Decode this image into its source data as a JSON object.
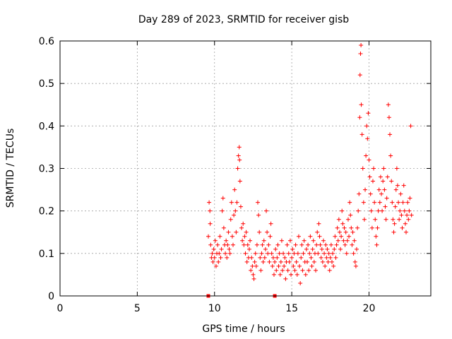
{
  "chart_data": {
    "type": "scatter",
    "title": "Day 289 of 2023, SRMTID for receiver gisb",
    "xlabel": "GPS time / hours",
    "ylabel": "SRMTID / TECUs",
    "xlim": [
      0,
      24
    ],
    "ylim": [
      0,
      0.6
    ],
    "xticks": [
      0,
      5,
      10,
      15,
      20
    ],
    "yticks": [
      0,
      0.1,
      0.2,
      0.3,
      0.4,
      0.5,
      0.6
    ],
    "xtick_labels": [
      "0",
      "5",
      "10",
      "15",
      "20"
    ],
    "ytick_labels": [
      "0",
      "0.1",
      "0.2",
      "0.3",
      "0.4",
      "0.5",
      "0.6"
    ],
    "grid": true,
    "marker": "+",
    "color": "#ff0000",
    "series": [
      {
        "name": "SRMTID",
        "points": [
          [
            9.6,
            0.14
          ],
          [
            9.65,
            0.22
          ],
          [
            9.7,
            0.2
          ],
          [
            9.72,
            0.17
          ],
          [
            9.75,
            0.12
          ],
          [
            9.8,
            0.09
          ],
          [
            9.85,
            0.1
          ],
          [
            9.9,
            0.08
          ],
          [
            9.95,
            0.11
          ],
          [
            10.0,
            0.09
          ],
          [
            10.05,
            0.13
          ],
          [
            10.1,
            0.07
          ],
          [
            10.15,
            0.1
          ],
          [
            10.2,
            0.12
          ],
          [
            10.25,
            0.08
          ],
          [
            10.3,
            0.1
          ],
          [
            10.35,
            0.14
          ],
          [
            10.4,
            0.09
          ],
          [
            10.45,
            0.11
          ],
          [
            10.5,
            0.2
          ],
          [
            10.55,
            0.23
          ],
          [
            10.6,
            0.16
          ],
          [
            10.65,
            0.12
          ],
          [
            10.7,
            0.1
          ],
          [
            10.75,
            0.13
          ],
          [
            10.8,
            0.09
          ],
          [
            10.85,
            0.12
          ],
          [
            10.9,
            0.15
          ],
          [
            10.95,
            0.11
          ],
          [
            11.0,
            0.1
          ],
          [
            11.05,
            0.18
          ],
          [
            11.1,
            0.22
          ],
          [
            11.15,
            0.14
          ],
          [
            11.2,
            0.12
          ],
          [
            11.25,
            0.19
          ],
          [
            11.3,
            0.25
          ],
          [
            11.35,
            0.2
          ],
          [
            11.4,
            0.15
          ],
          [
            11.45,
            0.22
          ],
          [
            11.5,
            0.3
          ],
          [
            11.55,
            0.33
          ],
          [
            11.6,
            0.35
          ],
          [
            11.62,
            0.32
          ],
          [
            11.65,
            0.27
          ],
          [
            11.7,
            0.21
          ],
          [
            11.75,
            0.16
          ],
          [
            11.8,
            0.13
          ],
          [
            11.85,
            0.17
          ],
          [
            11.9,
            0.12
          ],
          [
            11.95,
            0.14
          ],
          [
            12.0,
            0.1
          ],
          [
            12.05,
            0.15
          ],
          [
            12.1,
            0.08
          ],
          [
            12.15,
            0.12
          ],
          [
            12.2,
            0.09
          ],
          [
            12.25,
            0.11
          ],
          [
            12.3,
            0.13
          ],
          [
            12.35,
            0.06
          ],
          [
            12.4,
            0.09
          ],
          [
            12.45,
            0.07
          ],
          [
            12.5,
            0.05
          ],
          [
            12.55,
            0.04
          ],
          [
            12.6,
            0.08
          ],
          [
            12.65,
            0.1
          ],
          [
            12.7,
            0.07
          ],
          [
            12.75,
            0.12
          ],
          [
            12.8,
            0.22
          ],
          [
            12.85,
            0.19
          ],
          [
            12.9,
            0.15
          ],
          [
            12.95,
            0.09
          ],
          [
            13.0,
            0.06
          ],
          [
            13.05,
            0.1
          ],
          [
            13.1,
            0.12
          ],
          [
            13.15,
            0.08
          ],
          [
            13.2,
            0.13
          ],
          [
            13.25,
            0.09
          ],
          [
            13.3,
            0.11
          ],
          [
            13.35,
            0.2
          ],
          [
            13.4,
            0.15
          ],
          [
            13.45,
            0.1
          ],
          [
            13.5,
            0.12
          ],
          [
            13.55,
            0.08
          ],
          [
            13.6,
            0.14
          ],
          [
            13.65,
            0.17
          ],
          [
            13.7,
            0.1
          ],
          [
            13.75,
            0.07
          ],
          [
            13.8,
            0.09
          ],
          [
            13.85,
            0.05
          ],
          [
            13.9,
            0.08
          ],
          [
            13.95,
            0.11
          ],
          [
            14.0,
            0.06
          ],
          [
            14.05,
            0.09
          ],
          [
            14.1,
            0.12
          ],
          [
            14.15,
            0.07
          ],
          [
            14.2,
            0.1
          ],
          [
            14.25,
            0.05
          ],
          [
            14.3,
            0.08
          ],
          [
            14.35,
            0.13
          ],
          [
            14.4,
            0.06
          ],
          [
            14.45,
            0.1
          ],
          [
            14.5,
            0.07
          ],
          [
            14.55,
            0.09
          ],
          [
            14.6,
            0.04
          ],
          [
            14.65,
            0.08
          ],
          [
            14.7,
            0.12
          ],
          [
            14.75,
            0.06
          ],
          [
            14.8,
            0.1
          ],
          [
            14.85,
            0.08
          ],
          [
            14.9,
            0.13
          ],
          [
            14.95,
            0.05
          ],
          [
            15.0,
            0.09
          ],
          [
            15.05,
            0.11
          ],
          [
            15.1,
            0.07
          ],
          [
            15.15,
            0.1
          ],
          [
            15.2,
            0.06
          ],
          [
            15.25,
            0.12
          ],
          [
            15.3,
            0.08
          ],
          [
            15.35,
            0.05
          ],
          [
            15.4,
            0.1
          ],
          [
            15.45,
            0.14
          ],
          [
            15.5,
            0.07
          ],
          [
            15.55,
            0.03
          ],
          [
            15.6,
            0.09
          ],
          [
            15.65,
            0.12
          ],
          [
            15.7,
            0.06
          ],
          [
            15.75,
            0.1
          ],
          [
            15.8,
            0.13
          ],
          [
            15.85,
            0.08
          ],
          [
            15.9,
            0.05
          ],
          [
            15.95,
            0.11
          ],
          [
            16.0,
            0.08
          ],
          [
            16.05,
            0.12
          ],
          [
            16.1,
            0.06
          ],
          [
            16.15,
            0.1
          ],
          [
            16.2,
            0.14
          ],
          [
            16.25,
            0.09
          ],
          [
            16.3,
            0.07
          ],
          [
            16.35,
            0.11
          ],
          [
            16.4,
            0.13
          ],
          [
            16.45,
            0.08
          ],
          [
            16.5,
            0.1
          ],
          [
            16.55,
            0.06
          ],
          [
            16.6,
            0.12
          ],
          [
            16.65,
            0.15
          ],
          [
            16.7,
            0.1
          ],
          [
            16.75,
            0.17
          ],
          [
            16.8,
            0.14
          ],
          [
            16.85,
            0.12
          ],
          [
            16.9,
            0.09
          ],
          [
            16.95,
            0.11
          ],
          [
            17.0,
            0.08
          ],
          [
            17.05,
            0.13
          ],
          [
            17.1,
            0.1
          ],
          [
            17.15,
            0.07
          ],
          [
            17.2,
            0.12
          ],
          [
            17.25,
            0.09
          ],
          [
            17.3,
            0.11
          ],
          [
            17.35,
            0.08
          ],
          [
            17.4,
            0.1
          ],
          [
            17.45,
            0.06
          ],
          [
            17.5,
            0.09
          ],
          [
            17.55,
            0.12
          ],
          [
            17.6,
            0.08
          ],
          [
            17.65,
            0.1
          ],
          [
            17.7,
            0.07
          ],
          [
            17.75,
            0.11
          ],
          [
            17.8,
            0.14
          ],
          [
            17.85,
            0.09
          ],
          [
            17.9,
            0.12
          ],
          [
            17.95,
            0.16
          ],
          [
            18.0,
            0.13
          ],
          [
            18.05,
            0.18
          ],
          [
            18.1,
            0.15
          ],
          [
            18.15,
            0.11
          ],
          [
            18.2,
            0.14
          ],
          [
            18.25,
            0.2
          ],
          [
            18.3,
            0.17
          ],
          [
            18.35,
            0.13
          ],
          [
            18.4,
            0.16
          ],
          [
            18.45,
            0.12
          ],
          [
            18.5,
            0.15
          ],
          [
            18.55,
            0.1
          ],
          [
            18.6,
            0.13
          ],
          [
            18.65,
            0.18
          ],
          [
            18.7,
            0.14
          ],
          [
            18.75,
            0.22
          ],
          [
            18.8,
            0.19
          ],
          [
            18.85,
            0.16
          ],
          [
            18.9,
            0.12
          ],
          [
            18.95,
            0.15
          ],
          [
            19.0,
            0.1
          ],
          [
            19.05,
            0.13
          ],
          [
            19.1,
            0.08
          ],
          [
            19.15,
            0.07
          ],
          [
            19.2,
            0.11
          ],
          [
            19.25,
            0.16
          ],
          [
            19.3,
            0.2
          ],
          [
            19.35,
            0.24
          ],
          [
            19.4,
            0.42
          ],
          [
            19.42,
            0.52
          ],
          [
            19.45,
            0.57
          ],
          [
            19.48,
            0.59
          ],
          [
            19.5,
            0.45
          ],
          [
            19.55,
            0.38
          ],
          [
            19.6,
            0.3
          ],
          [
            19.65,
            0.22
          ],
          [
            19.7,
            0.18
          ],
          [
            19.75,
            0.25
          ],
          [
            19.8,
            0.33
          ],
          [
            19.85,
            0.4
          ],
          [
            19.9,
            0.37
          ],
          [
            19.95,
            0.43
          ],
          [
            20.0,
            0.32
          ],
          [
            20.05,
            0.28
          ],
          [
            20.1,
            0.24
          ],
          [
            20.15,
            0.2
          ],
          [
            20.2,
            0.16
          ],
          [
            20.25,
            0.27
          ],
          [
            20.3,
            0.3
          ],
          [
            20.35,
            0.22
          ],
          [
            20.4,
            0.18
          ],
          [
            20.45,
            0.14
          ],
          [
            20.5,
            0.12
          ],
          [
            20.55,
            0.16
          ],
          [
            20.6,
            0.2
          ],
          [
            20.65,
            0.25
          ],
          [
            20.7,
            0.22
          ],
          [
            20.75,
            0.28
          ],
          [
            20.8,
            0.24
          ],
          [
            20.85,
            0.2
          ],
          [
            20.9,
            0.27
          ],
          [
            20.95,
            0.3
          ],
          [
            21.0,
            0.25
          ],
          [
            21.05,
            0.21
          ],
          [
            21.1,
            0.18
          ],
          [
            21.15,
            0.23
          ],
          [
            21.2,
            0.28
          ],
          [
            21.25,
            0.45
          ],
          [
            21.3,
            0.42
          ],
          [
            21.35,
            0.38
          ],
          [
            21.4,
            0.33
          ],
          [
            21.45,
            0.27
          ],
          [
            21.5,
            0.22
          ],
          [
            21.55,
            0.18
          ],
          [
            21.6,
            0.15
          ],
          [
            21.65,
            0.17
          ],
          [
            21.7,
            0.21
          ],
          [
            21.75,
            0.25
          ],
          [
            21.8,
            0.3
          ],
          [
            21.85,
            0.26
          ],
          [
            21.9,
            0.22
          ],
          [
            21.95,
            0.18
          ],
          [
            22.0,
            0.2
          ],
          [
            22.05,
            0.24
          ],
          [
            22.1,
            0.19
          ],
          [
            22.15,
            0.16
          ],
          [
            22.2,
            0.22
          ],
          [
            22.25,
            0.26
          ],
          [
            22.3,
            0.2
          ],
          [
            22.35,
            0.17
          ],
          [
            22.4,
            0.15
          ],
          [
            22.45,
            0.19
          ],
          [
            22.5,
            0.22
          ],
          [
            22.55,
            0.18
          ],
          [
            22.6,
            0.2
          ],
          [
            22.65,
            0.23
          ],
          [
            22.7,
            0.4
          ],
          [
            22.75,
            0.19
          ]
        ]
      }
    ],
    "axis_markers": [
      9.6,
      13.9
    ]
  }
}
